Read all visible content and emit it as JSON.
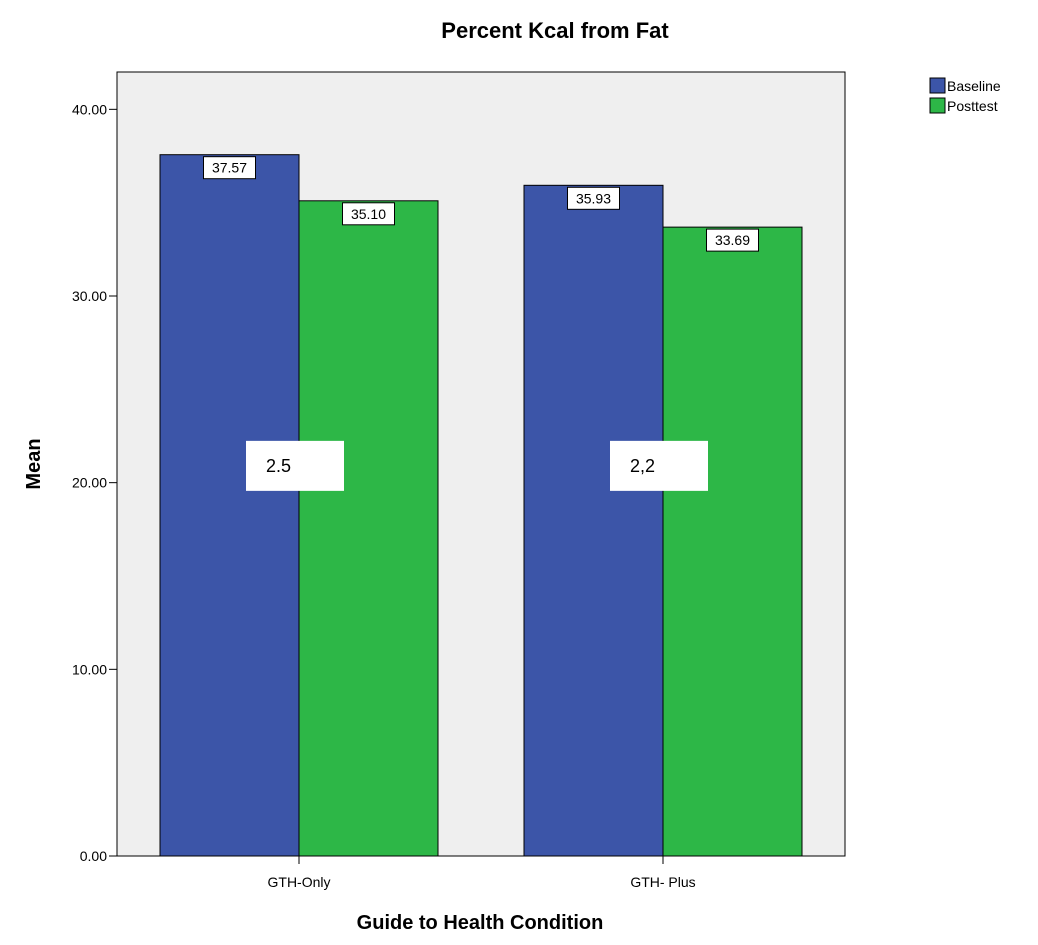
{
  "chart_data": {
    "type": "bar",
    "title": "Percent Kcal from Fat",
    "xlabel": "Guide to Health Condition",
    "ylabel": "Mean",
    "categories": [
      "GTH-Only",
      "GTH- Plus"
    ],
    "series": [
      {
        "name": "Baseline",
        "values": [
          37.57,
          35.93
        ],
        "labels": [
          "37.57",
          "35.93"
        ],
        "color": "#3c55a8"
      },
      {
        "name": "Posttest",
        "values": [
          35.1,
          33.69
        ],
        "labels": [
          "35.10",
          "33.69"
        ],
        "color": "#2db747"
      }
    ],
    "ylim": [
      0,
      42
    ],
    "yticks": [
      0,
      10,
      20,
      30,
      40
    ],
    "ytick_labels": [
      "0.00",
      "10.00",
      "20.00",
      "30.00",
      "40.00"
    ],
    "legend_position": "top-right",
    "grid": false,
    "plot_background": "#efefef",
    "annotations": [
      {
        "text": "2.5",
        "category": "GTH-Only",
        "y": 20.9
      },
      {
        "text": "2,2",
        "category": "GTH- Plus",
        "y": 20.9
      }
    ]
  }
}
